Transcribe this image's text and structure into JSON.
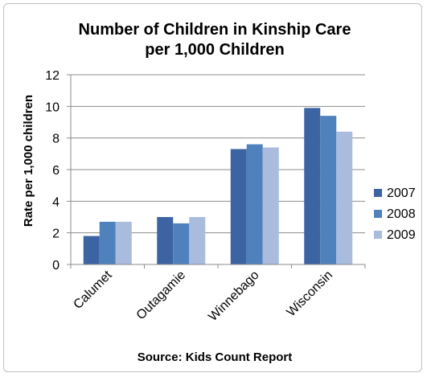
{
  "chart_data": {
    "type": "bar",
    "title_line1": "Number of Children in Kinship Care",
    "title_line2": "per 1,000 Children",
    "xlabel": "",
    "ylabel": "Rate per 1,000 children",
    "caption": "Source: Kids Count Report",
    "categories": [
      "Calumet",
      "Outagamie",
      "Winnebago",
      "Wisconsin"
    ],
    "series": [
      {
        "name": "2007",
        "color": "#3D64A2",
        "values": [
          1.8,
          3.0,
          7.3,
          9.9
        ]
      },
      {
        "name": "2008",
        "color": "#4F81BD",
        "values": [
          2.7,
          2.6,
          7.6,
          9.4
        ]
      },
      {
        "name": "2009",
        "color": "#A9BCDE",
        "values": [
          2.7,
          3.0,
          7.4,
          8.4
        ]
      }
    ],
    "ylim": [
      0,
      12
    ],
    "yticks": [
      0,
      2,
      4,
      6,
      8,
      10,
      12
    ],
    "grid": true,
    "legend_position": "right"
  }
}
